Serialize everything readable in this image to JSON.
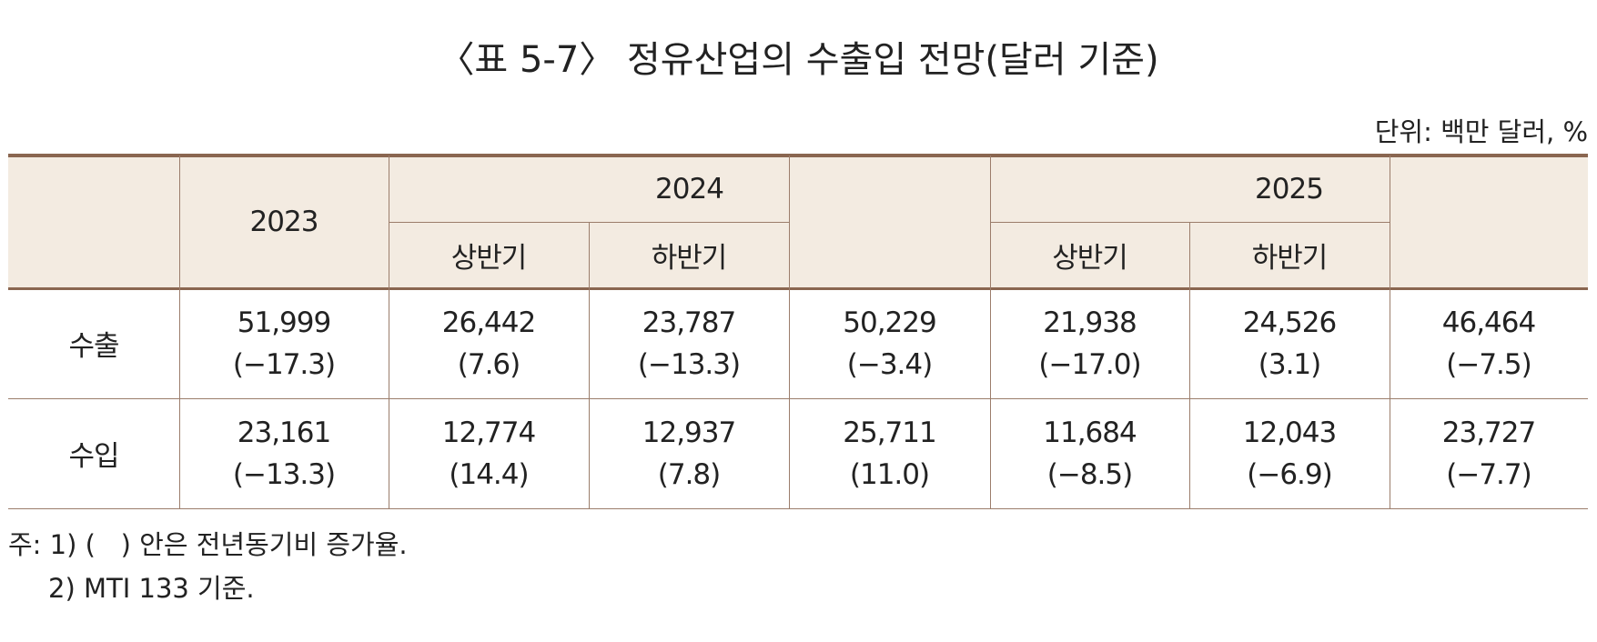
{
  "title": "〈표 5-7〉 정유산업의 수출입 전망(달러 기준)",
  "unit": "단위: 백만 달러, %",
  "table": {
    "header": {
      "years": [
        "2023",
        "2024",
        "2025"
      ],
      "halves": [
        "상반기",
        "하반기",
        "상반기",
        "하반기"
      ]
    },
    "rows": [
      {
        "label": "수출",
        "cells": [
          [
            "51,999",
            "(−17.3)"
          ],
          [
            "26,442",
            "(7.6)"
          ],
          [
            "23,787",
            "(−13.3)"
          ],
          [
            "50,229",
            "(−3.4)"
          ],
          [
            "21,938",
            "(−17.0)"
          ],
          [
            "24,526",
            "(3.1)"
          ],
          [
            "46,464",
            "(−7.5)"
          ]
        ]
      },
      {
        "label": "수입",
        "cells": [
          [
            "23,161",
            "(−13.3)"
          ],
          [
            "12,774",
            "(14.4)"
          ],
          [
            "12,937",
            "(7.8)"
          ],
          [
            "25,711",
            "(11.0)"
          ],
          [
            "11,684",
            "(−8.5)"
          ],
          [
            "12,043",
            "(−6.9)"
          ],
          [
            "23,727",
            "(−7.7)"
          ]
        ]
      }
    ]
  },
  "notes": [
    "주: 1) (   ) 안은 전년동기비 증가율.",
    "2) MTI 133 기준."
  ]
}
